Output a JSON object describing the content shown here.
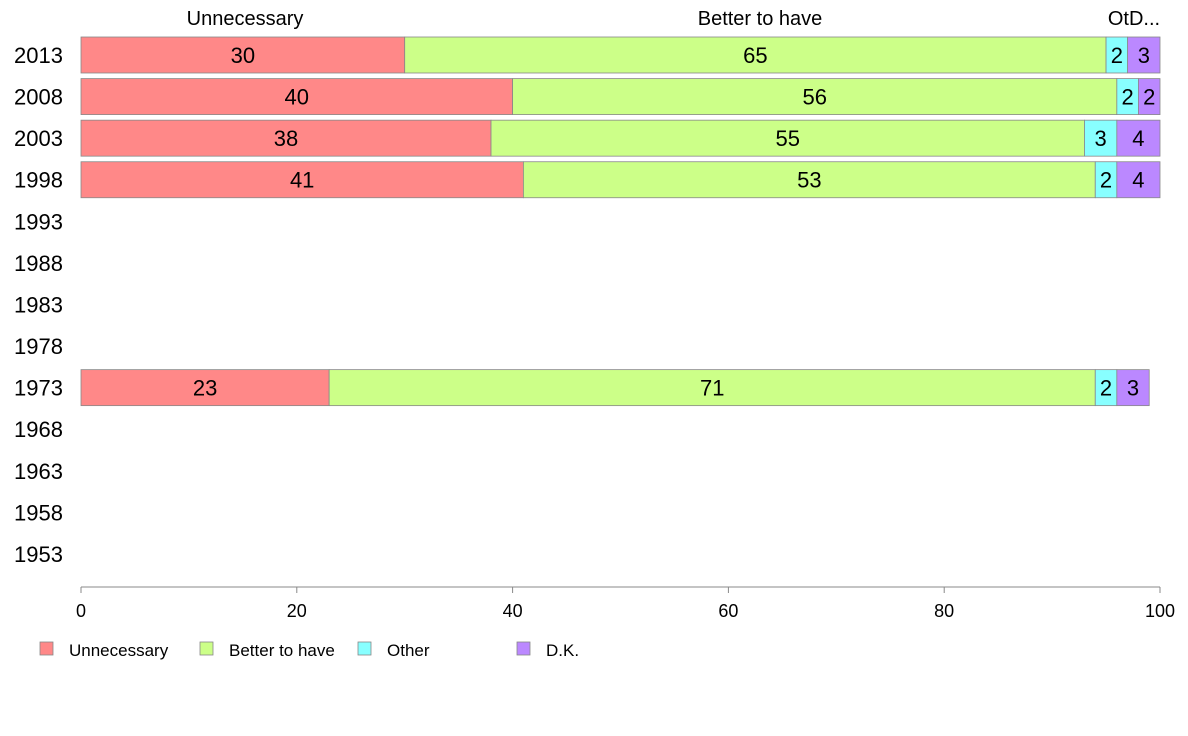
{
  "chart_data": {
    "type": "bar",
    "orientation": "horizontal",
    "stacked": true,
    "title": "",
    "xlabel": "",
    "ylabel": "",
    "xlim": [
      0,
      100
    ],
    "x_ticks": [
      "0",
      "20",
      "40",
      "60",
      "80",
      "100"
    ],
    "categories": [
      "2013",
      "2008",
      "2003",
      "1998",
      "1993",
      "1988",
      "1983",
      "1978",
      "1973",
      "1968",
      "1963",
      "1958",
      "1953"
    ],
    "column_headers": [
      "Unnecessary",
      "Better to have",
      "OtD..."
    ],
    "series": [
      {
        "name": "Unnecessary",
        "color": "#ff8888",
        "values": [
          30,
          40,
          38,
          41,
          null,
          null,
          null,
          null,
          23,
          null,
          null,
          null,
          null
        ]
      },
      {
        "name": "Better to have",
        "color": "#ccff88",
        "values": [
          65,
          56,
          55,
          53,
          null,
          null,
          null,
          null,
          71,
          null,
          null,
          null,
          null
        ]
      },
      {
        "name": "Other",
        "color": "#88ffff",
        "values": [
          2,
          2,
          3,
          2,
          null,
          null,
          null,
          null,
          2,
          null,
          null,
          null,
          null
        ]
      },
      {
        "name": "D.K.",
        "color": "#bb88ff",
        "values": [
          3,
          2,
          4,
          4,
          null,
          null,
          null,
          null,
          3,
          null,
          null,
          null,
          null
        ]
      }
    ],
    "grid": false,
    "legend_position": "bottom"
  }
}
